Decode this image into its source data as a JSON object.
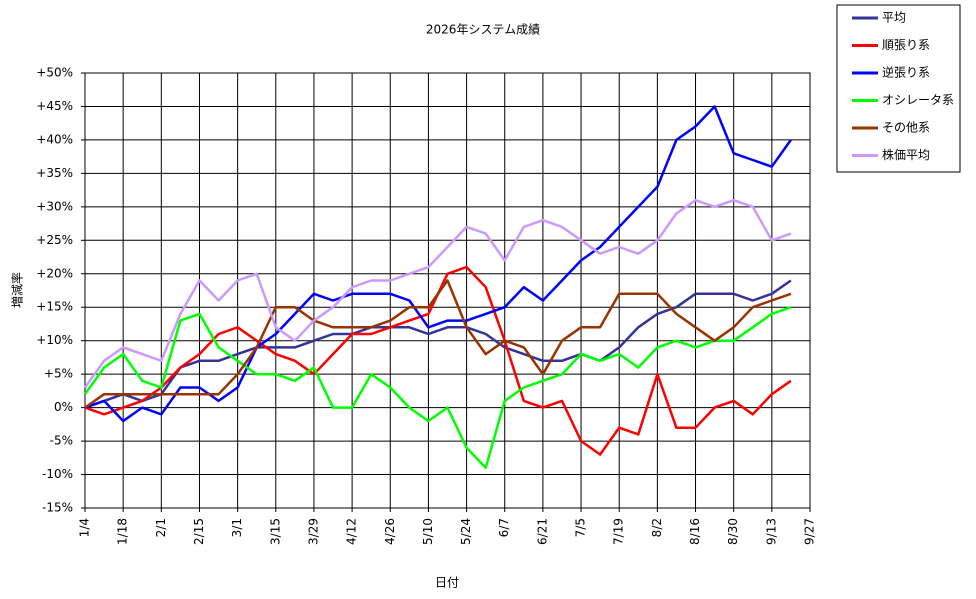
{
  "chart_data": {
    "type": "line",
    "title": "2026年システム成績",
    "x_label": "日付",
    "y_label": "増減率",
    "categories": [
      "1/4",
      null,
      "1/18",
      null,
      "2/1",
      null,
      "2/15",
      null,
      "3/1",
      null,
      "3/15",
      null,
      "3/29",
      null,
      "4/12",
      null,
      "4/26",
      null,
      "5/10",
      null,
      "5/24",
      null,
      "6/7",
      null,
      "6/21",
      null,
      "7/5",
      null,
      "7/19",
      null,
      "8/2",
      null,
      "8/16",
      null,
      "8/30",
      null,
      "9/13",
      null,
      "9/27"
    ],
    "series": [
      {
        "name": "平均",
        "color": "#333399",
        "values": [
          0,
          1,
          2,
          1,
          2,
          6,
          7,
          7,
          8,
          9,
          9,
          9,
          10,
          11,
          11,
          12,
          12,
          12,
          11,
          12,
          12,
          11,
          9,
          8,
          7,
          7,
          8,
          7,
          9,
          12,
          14,
          15,
          17,
          17,
          17,
          16,
          17,
          19,
          null
        ]
      },
      {
        "name": "順張り系",
        "color": "#ff0000",
        "values": [
          0,
          -1,
          0,
          1,
          3,
          6,
          8,
          11,
          12,
          10,
          8,
          7,
          5,
          8,
          11,
          11,
          12,
          13,
          14,
          20,
          21,
          18,
          10,
          1,
          0,
          1,
          -5,
          -7,
          -3,
          -4,
          5,
          -3,
          -3,
          0,
          1,
          -1,
          2,
          4,
          null
        ]
      },
      {
        "name": "逆張り系",
        "color": "#0000ff",
        "values": [
          0,
          1,
          -2,
          0,
          -1,
          3,
          3,
          1,
          3,
          9,
          11,
          14,
          17,
          16,
          17,
          17,
          17,
          16,
          12,
          13,
          13,
          14,
          15,
          18,
          16,
          19,
          22,
          24,
          27,
          30,
          33,
          40,
          42,
          45,
          38,
          37,
          36,
          40,
          null
        ]
      },
      {
        "name": "オシレータ系",
        "color": "#00ff00",
        "values": [
          2,
          6,
          8,
          4,
          3,
          13,
          14,
          9,
          7,
          5,
          5,
          4,
          6,
          0,
          0,
          5,
          3,
          0,
          -2,
          0,
          -6,
          -9,
          1,
          3,
          4,
          5,
          8,
          7,
          8,
          6,
          9,
          10,
          9,
          10,
          10,
          12,
          14,
          15,
          null
        ]
      },
      {
        "name": "その他系",
        "color": "#993300",
        "values": [
          0,
          2,
          2,
          2,
          2,
          2,
          2,
          2,
          5,
          9,
          15,
          15,
          13,
          12,
          12,
          12,
          13,
          15,
          15,
          19,
          12,
          8,
          10,
          9,
          5,
          10,
          12,
          12,
          17,
          17,
          17,
          14,
          12,
          10,
          12,
          15,
          16,
          17,
          null
        ]
      },
      {
        "name": "株価平均",
        "color": "#cc99ff",
        "values": [
          3,
          7,
          9,
          8,
          7,
          14,
          19,
          16,
          19,
          20,
          12,
          10,
          13,
          15,
          18,
          19,
          19,
          20,
          21,
          24,
          27,
          26,
          22,
          27,
          28,
          27,
          25,
          23,
          24,
          23,
          25,
          29,
          31,
          30,
          31,
          30,
          25,
          26,
          null
        ]
      }
    ],
    "ylim": [
      -15,
      50
    ],
    "yticks": [
      {
        "value": -15,
        "label": "-15%"
      },
      {
        "value": -10,
        "label": "-10%"
      },
      {
        "value": -5,
        "label": "-5%"
      },
      {
        "value": 0,
        "label": "0%"
      },
      {
        "value": 5,
        "label": "+5%"
      },
      {
        "value": 10,
        "label": "+10%"
      },
      {
        "value": 15,
        "label": "+15%"
      },
      {
        "value": 20,
        "label": "+20%"
      },
      {
        "value": 25,
        "label": "+25%"
      },
      {
        "value": 30,
        "label": "+30%"
      },
      {
        "value": 35,
        "label": "+35%"
      },
      {
        "value": 40,
        "label": "+40%"
      },
      {
        "value": 45,
        "label": "+45%"
      },
      {
        "value": 50,
        "label": "+50%"
      }
    ],
    "grid": true,
    "legend": "right"
  }
}
